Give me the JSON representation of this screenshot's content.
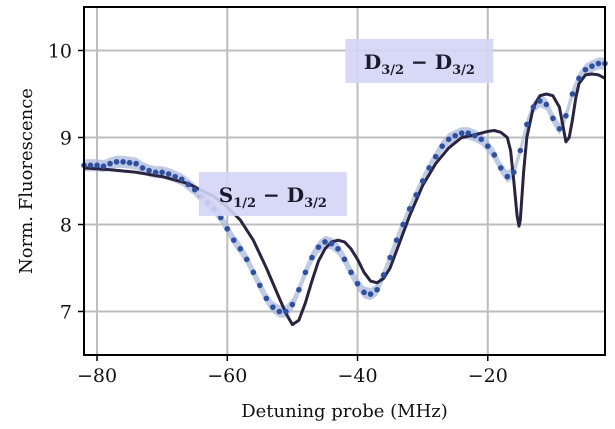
{
  "chart_data": {
    "type": "line",
    "xlabel": "Detuning probe (MHz)",
    "ylabel": "Norm. Fluorescence",
    "xlim": [
      -82,
      -2
    ],
    "ylim": [
      6.5,
      10.5
    ],
    "xticks": [
      -80,
      -60,
      -40,
      -20
    ],
    "xtick_labels": [
      "−80",
      "−60",
      "−40",
      "−20"
    ],
    "yticks": [
      7,
      8,
      9,
      10
    ],
    "ytick_labels": [
      "7",
      "8",
      "9",
      "10"
    ],
    "grid": true,
    "colors": {
      "data": "#2f4f9f",
      "band": "#a9b9dc",
      "fit": "#2a2440",
      "label_box": "#d3d5f6"
    },
    "annotations": [
      {
        "main": "S",
        "sub": "1/2",
        "mid": " − D",
        "sub2": "3/2",
        "x": -53,
        "y": 8.35
      },
      {
        "main": "D",
        "sub": "3/2",
        "mid": " − D",
        "sub2": "3/2",
        "x": -30.5,
        "y": 9.88
      }
    ],
    "series": [
      {
        "kind": "data",
        "x": [
          -82,
          -81,
          -80,
          -79,
          -78,
          -77,
          -76,
          -75,
          -74,
          -73,
          -72,
          -71,
          -70,
          -69,
          -68,
          -67,
          -66,
          -65,
          -64,
          -63,
          -62,
          -61,
          -60,
          -59,
          -58,
          -57,
          -56,
          -55,
          -54,
          -53,
          -52,
          -51,
          -50,
          -49,
          -48,
          -47,
          -46,
          -45,
          -44,
          -43,
          -42,
          -41,
          -40,
          -39,
          -38,
          -37,
          -36,
          -35,
          -34,
          -33,
          -32,
          -31,
          -30,
          -29,
          -28,
          -27,
          -26,
          -25,
          -24,
          -23,
          -22,
          -21,
          -20,
          -19,
          -18,
          -17,
          -16,
          -15,
          -14,
          -13,
          -12,
          -11,
          -10,
          -9,
          -8,
          -7,
          -6,
          -5,
          -4,
          -3,
          -2
        ],
        "y": [
          8.68,
          8.68,
          8.68,
          8.67,
          8.7,
          8.72,
          8.72,
          8.71,
          8.7,
          8.65,
          8.62,
          8.6,
          8.6,
          8.58,
          8.55,
          8.52,
          8.46,
          8.4,
          8.32,
          8.25,
          8.18,
          8.08,
          7.95,
          7.82,
          7.72,
          7.6,
          7.45,
          7.3,
          7.15,
          7.05,
          7.0,
          7.0,
          7.08,
          7.25,
          7.45,
          7.62,
          7.74,
          7.8,
          7.78,
          7.72,
          7.6,
          7.45,
          7.32,
          7.22,
          7.2,
          7.25,
          7.42,
          7.62,
          7.82,
          8.0,
          8.18,
          8.34,
          8.5,
          8.65,
          8.78,
          8.9,
          8.98,
          9.02,
          9.05,
          9.05,
          9.02,
          8.98,
          8.9,
          8.8,
          8.65,
          8.55,
          8.6,
          8.85,
          9.15,
          9.35,
          9.42,
          9.38,
          9.22,
          9.1,
          9.25,
          9.5,
          9.68,
          9.78,
          9.82,
          9.85,
          9.85
        ]
      },
      {
        "kind": "fit",
        "x": [
          -82,
          -78,
          -74,
          -70,
          -66,
          -62,
          -60,
          -58,
          -56,
          -54,
          -52,
          -51,
          -50,
          -49,
          -48,
          -47,
          -46,
          -45,
          -44,
          -43,
          -42,
          -41,
          -40,
          -39,
          -38,
          -37,
          -36,
          -35,
          -34,
          -32,
          -30,
          -28,
          -26,
          -24,
          -22,
          -21,
          -20,
          -19,
          -18,
          -17,
          -16.5,
          -16,
          -15.5,
          -15.2,
          -15,
          -14.5,
          -14,
          -13,
          -12,
          -11,
          -10,
          -9,
          -8.5,
          -8,
          -7.5,
          -7,
          -6.5,
          -6,
          -5,
          -4,
          -3,
          -2
        ],
        "y": [
          8.65,
          8.63,
          8.6,
          8.55,
          8.47,
          8.32,
          8.2,
          8.05,
          7.82,
          7.5,
          7.15,
          6.98,
          6.85,
          6.9,
          7.1,
          7.35,
          7.58,
          7.72,
          7.8,
          7.82,
          7.8,
          7.72,
          7.6,
          7.45,
          7.35,
          7.33,
          7.38,
          7.5,
          7.7,
          8.1,
          8.45,
          8.7,
          8.88,
          9.0,
          9.03,
          9.05,
          9.07,
          9.08,
          9.06,
          9.0,
          8.85,
          8.5,
          8.1,
          7.98,
          8.05,
          8.6,
          9.0,
          9.35,
          9.48,
          9.5,
          9.48,
          9.35,
          9.15,
          8.95,
          9.0,
          9.2,
          9.45,
          9.62,
          9.72,
          9.73,
          9.72,
          9.68
        ]
      }
    ]
  }
}
